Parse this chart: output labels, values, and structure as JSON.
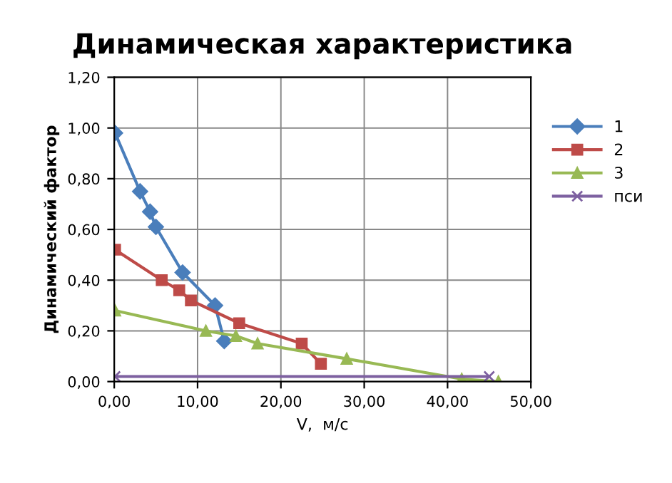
{
  "chart_data": {
    "type": "line",
    "title": "Динамическая характеристика",
    "xlabel": "V,  м/с",
    "ylabel": "Динамический фактор",
    "series": [
      {
        "name": "1",
        "color": "#4a7ebb",
        "marker": "diamond",
        "x": [
          0.1,
          3.1,
          4.3,
          5.0,
          8.2,
          12.1,
          13.2
        ],
        "values": [
          0.98,
          0.75,
          0.67,
          0.61,
          0.43,
          0.3,
          0.16
        ]
      },
      {
        "name": "2",
        "color": "#be4b48",
        "marker": "square",
        "x": [
          0.1,
          5.7,
          7.8,
          9.2,
          15.0,
          22.5,
          24.8
        ],
        "values": [
          0.52,
          0.4,
          0.36,
          0.32,
          0.23,
          0.15,
          0.07
        ]
      },
      {
        "name": "3",
        "color": "#98b954",
        "marker": "triangle",
        "x": [
          0.1,
          11.0,
          14.6,
          17.2,
          27.9,
          41.7,
          46.1
        ],
        "values": [
          0.28,
          0.2,
          0.18,
          0.15,
          0.09,
          0.01,
          0.0
        ]
      },
      {
        "name": "пси",
        "color": "#7d60a0",
        "marker": "cross",
        "x": [
          0.1,
          45.0
        ],
        "values": [
          0.02,
          0.02
        ]
      }
    ],
    "xlim": [
      0,
      50
    ],
    "ylim": [
      0,
      1.2
    ],
    "xticks": [
      {
        "value": 0,
        "label": "0,00"
      },
      {
        "value": 10,
        "label": "10,00"
      },
      {
        "value": 20,
        "label": "20,00"
      },
      {
        "value": 30,
        "label": "30,00"
      },
      {
        "value": 40,
        "label": "40,00"
      },
      {
        "value": 50,
        "label": "50,00"
      }
    ],
    "yticks": [
      {
        "value": 0,
        "label": "0,00"
      },
      {
        "value": 0.2,
        "label": "0,20"
      },
      {
        "value": 0.4,
        "label": "0,40"
      },
      {
        "value": 0.6,
        "label": "0,60"
      },
      {
        "value": 0.8,
        "label": "0,80"
      },
      {
        "value": 1.0,
        "label": "1,00"
      },
      {
        "value": 1.2,
        "label": "1,20"
      }
    ],
    "grid": true,
    "legend": "right",
    "line_style": "solid"
  }
}
